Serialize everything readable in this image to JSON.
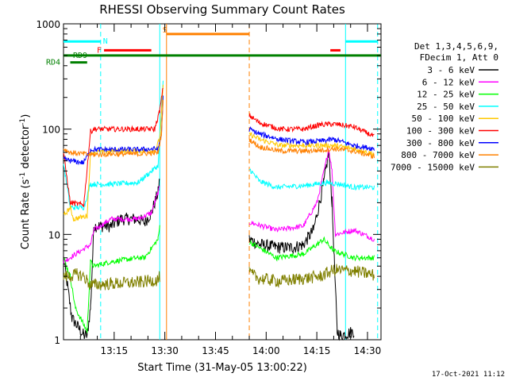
{
  "chart_data": {
    "type": "line",
    "title": "RHESSI Observing Summary Count Rates",
    "xlabel": "Start Time (31-May-05 13:00:22)",
    "ylabel_main": "Count Rate (s",
    "ylabel_sup1": "-1",
    "ylabel_mid": " detector",
    "ylabel_sup2": "-1",
    "ylabel_end": ")",
    "y_scale": "log",
    "ylim": [
      1,
      1000
    ],
    "xlim_minutes": [
      0,
      94
    ],
    "x_ticks": [
      {
        "label": "13:15",
        "min": 15
      },
      {
        "label": "13:30",
        "min": 30
      },
      {
        "label": "13:45",
        "min": 45
      },
      {
        "label": "14:00",
        "min": 60
      },
      {
        "label": "14:15",
        "min": 75
      },
      {
        "label": "14:30",
        "min": 90
      }
    ],
    "y_ticks": [
      {
        "label": "1",
        "v": 1
      },
      {
        "label": "10",
        "v": 10
      },
      {
        "label": "100",
        "v": 100
      },
      {
        "label": "1000",
        "v": 1000
      }
    ],
    "legend_header": [
      "Det 1,3,4,5,6,9,",
      "FDecim 1, Att 0"
    ],
    "legend_placement": "right",
    "timestamp": "17-Oct-2021 11:12",
    "series": [
      {
        "name": "3 - 6 keV",
        "color": "#000000",
        "points": [
          [
            0,
            6
          ],
          [
            2.5,
            1.6
          ],
          [
            6,
            1.1
          ],
          [
            7,
            1.1
          ],
          [
            8,
            2
          ],
          [
            9,
            12
          ],
          [
            14,
            12
          ],
          [
            17,
            14
          ],
          [
            22,
            14
          ],
          [
            24,
            13
          ],
          [
            26,
            16
          ],
          [
            28,
            25
          ],
          [
            28.5,
            35
          ]
        ],
        "points2": [
          [
            55,
            9
          ],
          [
            58,
            8
          ],
          [
            64,
            7.5
          ],
          [
            68,
            7.5
          ],
          [
            71,
            8
          ],
          [
            74,
            11
          ],
          [
            77,
            30
          ],
          [
            78.5,
            60
          ],
          [
            79.5,
            20
          ],
          [
            81,
            1.2
          ],
          [
            82,
            1.1
          ],
          [
            86,
            1.2
          ]
        ]
      },
      {
        "name": "6 - 12 keV",
        "color": "#ff00ff",
        "points": [
          [
            0,
            5.5
          ],
          [
            8,
            8
          ],
          [
            9,
            11
          ],
          [
            14,
            14
          ],
          [
            22,
            14
          ],
          [
            26,
            16
          ],
          [
            28.5,
            28
          ]
        ],
        "points2": [
          [
            55,
            13
          ],
          [
            63,
            11
          ],
          [
            71,
            12
          ],
          [
            75,
            20
          ],
          [
            77.5,
            45
          ],
          [
            78.5,
            65
          ],
          [
            79.5,
            40
          ],
          [
            80.5,
            10
          ],
          [
            86,
            11
          ],
          [
            92,
            9
          ]
        ]
      },
      {
        "name": "12 - 25 keV",
        "color": "#00ff00",
        "points": [
          [
            0,
            6
          ],
          [
            2,
            4
          ],
          [
            3.5,
            2
          ],
          [
            7,
            1.2
          ],
          [
            8,
            5.5
          ],
          [
            9,
            5
          ],
          [
            14,
            5.5
          ],
          [
            22,
            6
          ],
          [
            24,
            6
          ],
          [
            28,
            9
          ],
          [
            28.5,
            12
          ]
        ],
        "points2": [
          [
            55,
            8.5
          ],
          [
            63,
            6
          ],
          [
            71,
            6.5
          ],
          [
            75,
            8
          ],
          [
            77,
            9
          ],
          [
            80,
            7
          ],
          [
            86,
            6
          ],
          [
            92,
            6
          ]
        ]
      },
      {
        "name": "25 - 50 keV",
        "color": "#00ffff",
        "points": [
          [
            0,
            48
          ],
          [
            2,
            18
          ],
          [
            6,
            18
          ],
          [
            8,
            30
          ],
          [
            9,
            30
          ],
          [
            14,
            30
          ],
          [
            22,
            31
          ],
          [
            28,
            45
          ],
          [
            29,
            150
          ],
          [
            29.5,
            280
          ]
        ],
        "points2": [
          [
            55,
            42
          ],
          [
            58,
            32
          ],
          [
            63,
            28
          ],
          [
            71,
            29
          ],
          [
            78,
            31
          ],
          [
            82,
            30
          ],
          [
            86,
            28
          ],
          [
            92,
            28
          ]
        ]
      },
      {
        "name": "50 - 100 keV",
        "color": "#ffc800",
        "points": [
          [
            0,
            15
          ],
          [
            2,
            18
          ],
          [
            3,
            14
          ],
          [
            7,
            15
          ],
          [
            8,
            60
          ],
          [
            14,
            62
          ],
          [
            22,
            62
          ],
          [
            27,
            62
          ],
          [
            28.5,
            80
          ],
          [
            29.5,
            250
          ]
        ],
        "points2": [
          [
            55,
            90
          ],
          [
            58,
            80
          ],
          [
            64,
            70
          ],
          [
            71,
            70
          ],
          [
            76,
            70
          ],
          [
            80,
            70
          ],
          [
            86,
            65
          ],
          [
            92,
            58
          ]
        ]
      },
      {
        "name": "100 - 300 keV",
        "color": "#ff0000",
        "points": [
          [
            0,
            60
          ],
          [
            2,
            20
          ],
          [
            6,
            19
          ],
          [
            8,
            95
          ],
          [
            9,
            100
          ],
          [
            14,
            100
          ],
          [
            22,
            100
          ],
          [
            27,
            100
          ],
          [
            28.5,
            150
          ],
          [
            29.5,
            250
          ]
        ],
        "points2": [
          [
            55,
            135
          ],
          [
            58,
            115
          ],
          [
            64,
            100
          ],
          [
            71,
            100
          ],
          [
            76,
            110
          ],
          [
            80,
            112
          ],
          [
            86,
            105
          ],
          [
            92,
            85
          ]
        ]
      },
      {
        "name": "300 - 800 keV",
        "color": "#0000ff",
        "points": [
          [
            0,
            52
          ],
          [
            2,
            50
          ],
          [
            6,
            48
          ],
          [
            8,
            64
          ],
          [
            14,
            64
          ],
          [
            22,
            64
          ],
          [
            28,
            65
          ],
          [
            29,
            90
          ],
          [
            29.5,
            200
          ]
        ],
        "points2": [
          [
            55,
            100
          ],
          [
            58,
            90
          ],
          [
            64,
            80
          ],
          [
            71,
            75
          ],
          [
            76,
            77
          ],
          [
            80,
            80
          ],
          [
            86,
            70
          ],
          [
            92,
            65
          ]
        ]
      },
      {
        "name": "800 - 7000 keV",
        "color": "#ff8000",
        "points": [
          [
            0,
            65
          ],
          [
            2,
            60
          ],
          [
            6,
            58
          ],
          [
            8,
            57
          ],
          [
            14,
            58
          ],
          [
            22,
            58
          ],
          [
            28,
            60
          ],
          [
            29,
            90
          ],
          [
            29.5,
            180
          ]
        ],
        "points2": [
          [
            55,
            80
          ],
          [
            58,
            68
          ],
          [
            64,
            62
          ],
          [
            71,
            62
          ],
          [
            76,
            63
          ],
          [
            80,
            65
          ],
          [
            86,
            62
          ],
          [
            92,
            55
          ]
        ]
      },
      {
        "name": "7000 - 15000 keV",
        "color": "#808000",
        "points": [
          [
            0,
            4
          ],
          [
            2,
            4
          ],
          [
            4,
            4.2
          ],
          [
            6,
            4
          ],
          [
            8,
            3.3
          ],
          [
            14,
            3.4
          ],
          [
            22,
            3.5
          ],
          [
            28,
            3.7
          ],
          [
            28.5,
            4
          ]
        ],
        "points2": [
          [
            55,
            4.3
          ],
          [
            58,
            3.8
          ],
          [
            64,
            3.6
          ],
          [
            71,
            3.8
          ],
          [
            76,
            4
          ],
          [
            80,
            4.6
          ],
          [
            86,
            4.5
          ],
          [
            92,
            4.1
          ]
        ]
      }
    ],
    "vertical_lines": [
      {
        "min": 11,
        "color": "#00ffff",
        "dashed": true
      },
      {
        "min": 28.5,
        "color": "#00ffff",
        "dashed": false
      },
      {
        "min": 30.5,
        "color": "#ff8000",
        "dashed": false
      },
      {
        "min": 55,
        "color": "#ff8000",
        "dashed": true
      },
      {
        "min": 83.5,
        "color": "#00ffff",
        "dashed": false
      },
      {
        "min": 93,
        "color": "#00ffff",
        "dashed": true
      }
    ],
    "flags": [
      {
        "label": "N",
        "color": "#00ffff",
        "from": 0,
        "to": 11,
        "v": 680
      },
      {
        "label": "",
        "color": "#00ffff",
        "from": 83.5,
        "to": 93,
        "v": 680
      },
      {
        "label": "S",
        "color": "#ff8000",
        "from": 30.5,
        "to": 55,
        "v": 800
      },
      {
        "label": "F",
        "color": "#ff0000",
        "from": 12,
        "to": 26,
        "v": 560
      },
      {
        "label": "",
        "color": "#ff0000",
        "from": 79,
        "to": 82,
        "v": 560
      },
      {
        "label": "RD9",
        "color": "#008000",
        "from": 0,
        "to": 94,
        "v": 500
      },
      {
        "label": "RD4",
        "color": "#008000",
        "from": 2,
        "to": 7,
        "v": 430
      }
    ]
  }
}
